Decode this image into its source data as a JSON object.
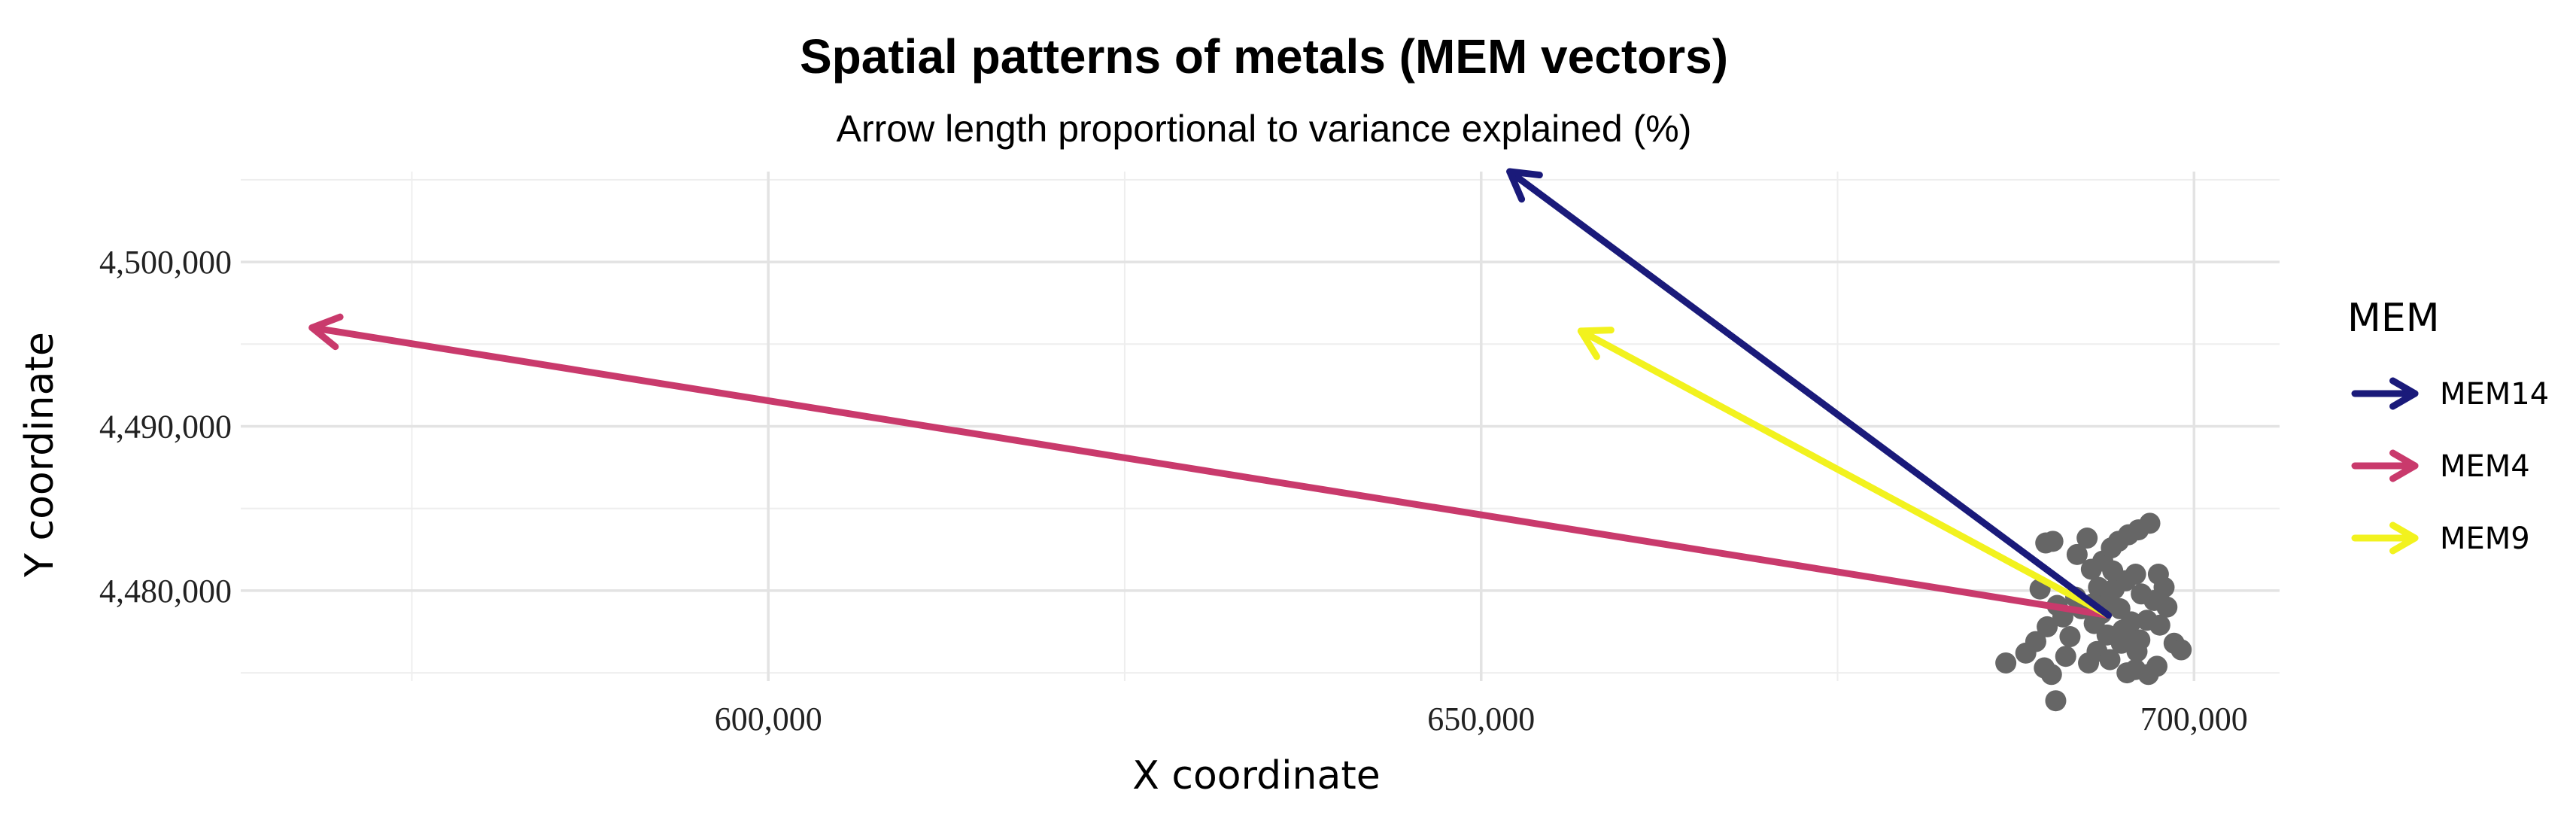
{
  "chart_data": {
    "type": "scatter",
    "title": "Spatial patterns of metals (MEM vectors)",
    "subtitle": "Arrow length proportional to variance explained (%)",
    "xlabel": "X coordinate",
    "ylabel": "Y coordinate",
    "xlim": [
      563000,
      706000
    ],
    "ylim": [
      4474500,
      4505500
    ],
    "x_ticks": [
      600000,
      650000,
      700000
    ],
    "x_tick_labels": [
      "600,000",
      "650,000",
      "700,000"
    ],
    "y_ticks": [
      4480000,
      4490000,
      4500000
    ],
    "y_tick_labels": [
      "4,480,000",
      "4,490,000",
      "4,500,000"
    ],
    "grid": true,
    "legend": {
      "title": "MEM",
      "position": "right"
    },
    "arrow_origin": {
      "x": 694000,
      "y": 4478500
    },
    "series": [
      {
        "name": "MEM14",
        "color": "#1a1a7a",
        "x_start": 694000,
        "y_start": 4478500,
        "x_end": 652000,
        "y_end": 4505500
      },
      {
        "name": "MEM4",
        "color": "#c93a6c",
        "x_start": 694000,
        "y_start": 4478500,
        "x_end": 568000,
        "y_end": 4496000
      },
      {
        "name": "MEM9",
        "color": "#f2f21e",
        "x_start": 694000,
        "y_start": 4478500,
        "x_end": 657000,
        "y_end": 4495800
      }
    ],
    "points_color": "#666666",
    "points": [
      [
        686800,
        4475600
      ],
      [
        688200,
        4476200
      ],
      [
        688900,
        4476900
      ],
      [
        689500,
        4475300
      ],
      [
        690000,
        4474900
      ],
      [
        690300,
        4473300
      ],
      [
        689700,
        4477800
      ],
      [
        691000,
        4476000
      ],
      [
        691300,
        4477200
      ],
      [
        690800,
        4478400
      ],
      [
        690100,
        4483000
      ],
      [
        689600,
        4482900
      ],
      [
        691800,
        4482200
      ],
      [
        692500,
        4483200
      ],
      [
        692800,
        4481300
      ],
      [
        693300,
        4480200
      ],
      [
        693600,
        4481800
      ],
      [
        694200,
        4482600
      ],
      [
        694700,
        4483000
      ],
      [
        695400,
        4483400
      ],
      [
        696100,
        4483700
      ],
      [
        696900,
        4484100
      ],
      [
        694000,
        4479300
      ],
      [
        694800,
        4478900
      ],
      [
        695200,
        4480600
      ],
      [
        695900,
        4481000
      ],
      [
        696300,
        4479800
      ],
      [
        696700,
        4478200
      ],
      [
        697200,
        4479400
      ],
      [
        697600,
        4477900
      ],
      [
        698100,
        4479000
      ],
      [
        698600,
        4476800
      ],
      [
        699100,
        4476400
      ],
      [
        697400,
        4475400
      ],
      [
        696800,
        4474900
      ],
      [
        695900,
        4475200
      ],
      [
        694900,
        4476800
      ],
      [
        693900,
        4477300
      ],
      [
        693200,
        4476300
      ],
      [
        692600,
        4475600
      ],
      [
        692100,
        4478900
      ],
      [
        692900,
        4479200
      ],
      [
        693500,
        4478600
      ],
      [
        694400,
        4480100
      ],
      [
        695000,
        4477600
      ],
      [
        695600,
        4478100
      ],
      [
        696200,
        4477000
      ],
      [
        697900,
        4480200
      ],
      [
        697500,
        4481000
      ],
      [
        694300,
        4481200
      ],
      [
        693000,
        4478000
      ],
      [
        691700,
        4479600
      ],
      [
        690400,
        4479100
      ],
      [
        689200,
        4480100
      ],
      [
        696000,
        4476300
      ],
      [
        695300,
        4475000
      ],
      [
        694100,
        4475800
      ]
    ]
  }
}
